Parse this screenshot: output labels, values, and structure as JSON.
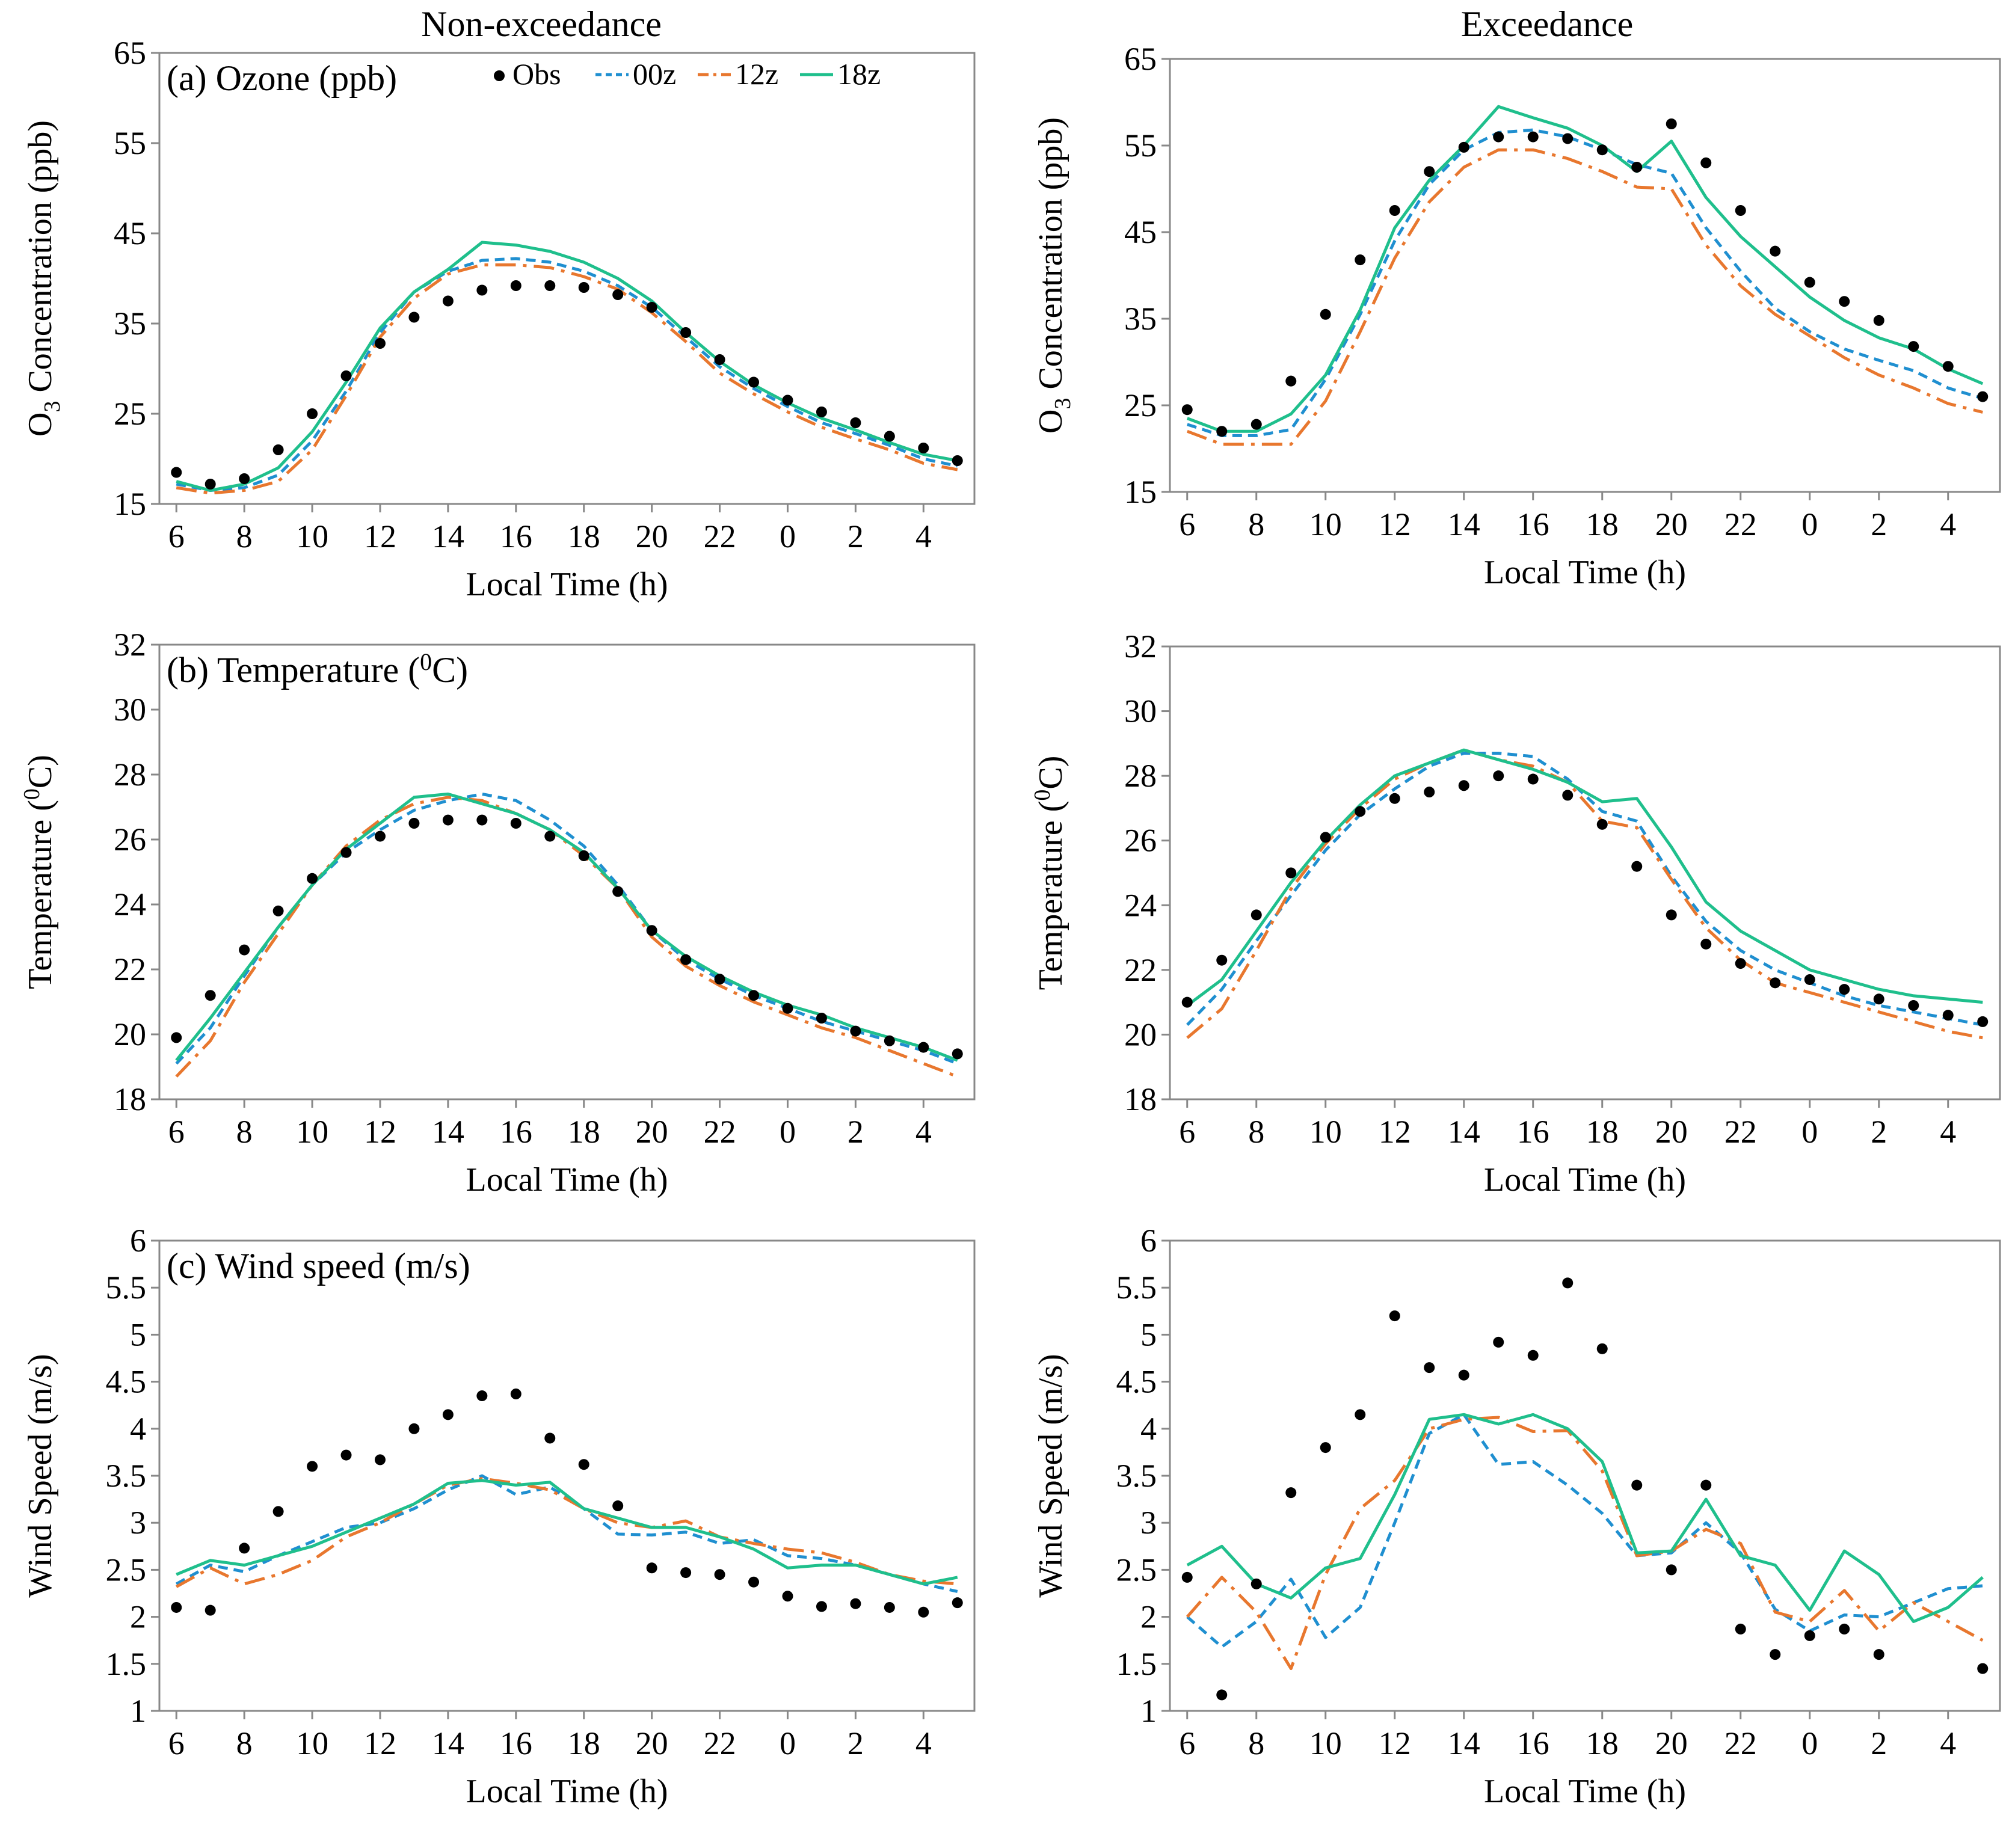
{
  "column_titles": [
    "Non-exceedance",
    "Exceedance"
  ],
  "legend": [
    {
      "key": "obs",
      "label": "Obs"
    },
    {
      "key": "s00z",
      "label": "00z"
    },
    {
      "key": "s12z",
      "label": "12z"
    },
    {
      "key": "s18z",
      "label": "18z"
    }
  ],
  "colors": {
    "obs": "#000000",
    "s00z": "#1f8fd0",
    "s12z": "#e8772e",
    "s18z": "#1fbf8c"
  },
  "chart_data": [
    {
      "id": "ozone-nonexceedance",
      "type": "line",
      "column_title": "Non-exceedance",
      "panel_label_main": "(a) Ozone (ppb)",
      "title": "(a) Ozone (ppb)",
      "xlabel": "Local Time (h)",
      "ylabel": "O3 Concentration (ppb)",
      "ylabel_main": "O",
      "ylabel_sub": "3",
      "ylabel_rest": " Concentration (ppb)",
      "ylim": [
        15,
        65
      ],
      "yticks": [
        "15",
        "25",
        "35",
        "45",
        "55",
        "65"
      ],
      "x_tick_labels": [
        "6",
        "8",
        "10",
        "12",
        "14",
        "16",
        "18",
        "20",
        "22",
        "0",
        "2",
        "4"
      ],
      "x": [
        6,
        7,
        8,
        9,
        10,
        11,
        12,
        13,
        14,
        15,
        16,
        17,
        18,
        19,
        20,
        21,
        22,
        23,
        0,
        1,
        2,
        3,
        4,
        5
      ],
      "series": [
        {
          "key": "obs",
          "name": "Obs",
          "values": [
            18.5,
            17.2,
            17.8,
            21,
            25,
            29.2,
            32.8,
            35.7,
            37.5,
            38.7,
            39.2,
            39.2,
            39,
            38.2,
            36.8,
            34,
            31,
            28.5,
            26.5,
            25.2,
            24,
            22.5,
            21.2,
            19.8
          ]
        },
        {
          "key": "s00z",
          "name": "00z",
          "values": [
            17.2,
            16.5,
            16.8,
            18.2,
            22,
            27.5,
            34,
            38.5,
            40.8,
            42,
            42.2,
            41.8,
            40.8,
            39.2,
            36.8,
            33.5,
            30.2,
            27.8,
            25.8,
            24,
            22.8,
            21.5,
            20,
            19.2
          ]
        },
        {
          "key": "s12z",
          "name": "12z",
          "values": [
            16.8,
            16.2,
            16.5,
            17.5,
            21,
            27,
            33.5,
            37.8,
            40.5,
            41.5,
            41.5,
            41.2,
            40.2,
            38.8,
            36.2,
            33,
            29.5,
            27.2,
            25.2,
            23.5,
            22.2,
            21,
            19.5,
            18.8
          ]
        },
        {
          "key": "s18z",
          "name": "18z",
          "values": [
            17.5,
            16.5,
            17.2,
            19,
            23,
            28.5,
            34.5,
            38.5,
            41,
            44,
            43.7,
            43,
            41.8,
            40,
            37.5,
            34,
            30.8,
            28.2,
            26.2,
            24.5,
            23.2,
            21.8,
            20.5,
            19.8
          ]
        }
      ]
    },
    {
      "id": "ozone-exceedance",
      "type": "line",
      "column_title": "Exceedance",
      "panel_label_main": "",
      "title": "",
      "xlabel": "Local Time (h)",
      "ylabel": "O3 Concentration (ppb)",
      "ylabel_main": "O",
      "ylabel_sub": "3",
      "ylabel_rest": " Concentration (ppb)",
      "ylim": [
        15,
        65
      ],
      "yticks": [
        "15",
        "25",
        "35",
        "45",
        "55",
        "65"
      ],
      "x_tick_labels": [
        "6",
        "8",
        "10",
        "12",
        "14",
        "16",
        "18",
        "20",
        "22",
        "0",
        "2",
        "4"
      ],
      "x": [
        6,
        7,
        8,
        9,
        10,
        11,
        12,
        13,
        14,
        15,
        16,
        17,
        18,
        19,
        20,
        21,
        22,
        23,
        0,
        1,
        2,
        3,
        4,
        5
      ],
      "series": [
        {
          "key": "obs",
          "name": "Obs",
          "values": [
            24.5,
            22,
            22.8,
            27.8,
            35.5,
            41.8,
            47.5,
            52,
            54.8,
            56,
            56,
            55.8,
            54.5,
            52.5,
            57.5,
            53,
            47.5,
            42.8,
            39.2,
            37,
            34.8,
            31.8,
            29.5,
            26
          ]
        },
        {
          "key": "s00z",
          "name": "00z",
          "values": [
            22.8,
            21.5,
            21.5,
            22.2,
            28,
            35.5,
            44,
            50.5,
            54.5,
            56.5,
            56.8,
            56,
            54.5,
            52.8,
            51.8,
            45.5,
            40.5,
            36.2,
            33.5,
            31.5,
            30.2,
            29,
            27,
            25.8
          ]
        },
        {
          "key": "s12z",
          "name": "12z",
          "values": [
            22,
            20.5,
            20.5,
            20.5,
            25.5,
            33.5,
            42,
            48.5,
            52.5,
            54.5,
            54.5,
            53.5,
            52,
            50.2,
            50,
            43.5,
            38.8,
            35.5,
            33,
            30.5,
            28.5,
            27,
            25.2,
            24.2
          ]
        },
        {
          "key": "s18z",
          "name": "18z",
          "values": [
            23.5,
            22,
            22,
            24,
            28.5,
            36,
            45.5,
            51,
            55,
            59.5,
            58.2,
            57,
            55,
            52,
            55.5,
            49,
            44.5,
            41,
            37.5,
            34.8,
            32.8,
            31.5,
            29.2,
            27.5
          ]
        }
      ]
    },
    {
      "id": "temperature-nonexceedance",
      "type": "line",
      "column_title": "Non-exceedance",
      "panel_label_main": "(b) Temperature (",
      "panel_label_sup": "0",
      "panel_label_end": "C)",
      "title": "(b) Temperature (0C)",
      "xlabel": "Local Time (h)",
      "ylabel": "Temperature (0C)",
      "ylabel_main": "Temperature (",
      "ylabel_sup": "0",
      "ylabel_rest": "C)",
      "ylim": [
        18,
        32
      ],
      "yticks": [
        "18",
        "20",
        "22",
        "24",
        "26",
        "28",
        "30",
        "32"
      ],
      "x_tick_labels": [
        "6",
        "8",
        "10",
        "12",
        "14",
        "16",
        "18",
        "20",
        "22",
        "0",
        "2",
        "4"
      ],
      "x": [
        6,
        7,
        8,
        9,
        10,
        11,
        12,
        13,
        14,
        15,
        16,
        17,
        18,
        19,
        20,
        21,
        22,
        23,
        0,
        1,
        2,
        3,
        4,
        5
      ],
      "series": [
        {
          "key": "obs",
          "name": "Obs",
          "values": [
            19.9,
            21.2,
            22.6,
            23.8,
            24.8,
            25.6,
            26.1,
            26.5,
            26.6,
            26.6,
            26.5,
            26.1,
            25.5,
            24.4,
            23.2,
            22.3,
            21.7,
            21.2,
            20.8,
            20.5,
            20.1,
            19.8,
            19.6,
            19.4
          ]
        },
        {
          "key": "s00z",
          "name": "00z",
          "values": [
            19.1,
            20.2,
            21.8,
            23.3,
            24.6,
            25.6,
            26.3,
            26.9,
            27.2,
            27.4,
            27.2,
            26.6,
            25.8,
            24.6,
            23.2,
            22.3,
            21.7,
            21.2,
            20.8,
            20.4,
            20.1,
            19.8,
            19.5,
            19.1
          ]
        },
        {
          "key": "s12z",
          "name": "12z",
          "values": [
            18.7,
            19.8,
            21.6,
            23.1,
            24.6,
            25.8,
            26.6,
            27.1,
            27.3,
            27.2,
            26.8,
            26.3,
            25.5,
            24.5,
            23.0,
            22.1,
            21.5,
            21.0,
            20.6,
            20.2,
            19.9,
            19.5,
            19.1,
            18.7
          ]
        },
        {
          "key": "s18z",
          "name": "18z",
          "values": [
            19.2,
            20.5,
            21.9,
            23.3,
            24.6,
            25.7,
            26.5,
            27.3,
            27.4,
            27.1,
            26.8,
            26.3,
            25.6,
            24.5,
            23.2,
            22.4,
            21.8,
            21.3,
            20.9,
            20.6,
            20.2,
            19.9,
            19.6,
            19.2
          ]
        }
      ]
    },
    {
      "id": "temperature-exceedance",
      "type": "line",
      "column_title": "Exceedance",
      "panel_label_main": "",
      "title": "",
      "xlabel": "Local Time (h)",
      "ylabel": "Temperature (0C)",
      "ylabel_main": "Temperature (",
      "ylabel_sup": "0",
      "ylabel_rest": "C)",
      "ylim": [
        18,
        32
      ],
      "yticks": [
        "18",
        "20",
        "22",
        "24",
        "26",
        "28",
        "30",
        "32"
      ],
      "x_tick_labels": [
        "6",
        "8",
        "10",
        "12",
        "14",
        "16",
        "18",
        "20",
        "22",
        "0",
        "2",
        "4"
      ],
      "x": [
        6,
        7,
        8,
        9,
        10,
        11,
        12,
        13,
        14,
        15,
        16,
        17,
        18,
        19,
        20,
        21,
        22,
        23,
        0,
        1,
        2,
        3,
        4,
        5
      ],
      "series": [
        {
          "key": "obs",
          "name": "Obs",
          "values": [
            21.0,
            22.3,
            23.7,
            25.0,
            26.1,
            26.9,
            27.3,
            27.5,
            27.7,
            28.0,
            27.9,
            27.4,
            26.5,
            25.2,
            23.7,
            22.8,
            22.2,
            21.6,
            21.7,
            21.4,
            21.1,
            20.9,
            20.6,
            20.4
          ]
        },
        {
          "key": "s00z",
          "name": "00z",
          "values": [
            20.3,
            21.4,
            22.9,
            24.3,
            25.7,
            26.8,
            27.6,
            28.3,
            28.7,
            28.7,
            28.6,
            27.9,
            26.9,
            26.6,
            24.9,
            23.5,
            22.6,
            22.0,
            21.6,
            21.2,
            20.9,
            20.7,
            20.5,
            20.3
          ]
        },
        {
          "key": "s12z",
          "name": "12z",
          "values": [
            19.9,
            20.8,
            22.6,
            24.5,
            25.9,
            27.0,
            27.9,
            28.4,
            28.8,
            28.5,
            28.3,
            27.8,
            26.6,
            26.4,
            24.8,
            23.3,
            22.3,
            21.6,
            21.3,
            21.0,
            20.7,
            20.4,
            20.1,
            19.9
          ]
        },
        {
          "key": "s18z",
          "name": "18z",
          "values": [
            20.9,
            21.7,
            23.2,
            24.7,
            26.0,
            27.1,
            28.0,
            28.4,
            28.8,
            28.5,
            28.2,
            27.8,
            27.2,
            27.3,
            25.8,
            24.1,
            23.2,
            22.6,
            22.0,
            21.7,
            21.4,
            21.2,
            21.1,
            21.0
          ]
        }
      ]
    },
    {
      "id": "windspeed-nonexceedance",
      "type": "line",
      "column_title": "Non-exceedance",
      "panel_label_main": "(c) Wind speed (m/s)",
      "title": "(c) Wind speed (m/s)",
      "xlabel": "Local Time (h)",
      "ylabel": "Wind Speed (m/s)",
      "ylabel_main": "Wind Speed (m/s)",
      "ylim": [
        1,
        6
      ],
      "yticks": [
        "1",
        "1.5",
        "2",
        "2.5",
        "3",
        "3.5",
        "4",
        "4.5",
        "5",
        "5.5",
        "6"
      ],
      "x_tick_labels": [
        "6",
        "8",
        "10",
        "12",
        "14",
        "16",
        "18",
        "20",
        "22",
        "0",
        "2",
        "4"
      ],
      "x": [
        6,
        7,
        8,
        9,
        10,
        11,
        12,
        13,
        14,
        15,
        16,
        17,
        18,
        19,
        20,
        21,
        22,
        23,
        0,
        1,
        2,
        3,
        4,
        5
      ],
      "series": [
        {
          "key": "obs",
          "name": "Obs",
          "values": [
            2.1,
            2.07,
            2.73,
            3.12,
            3.6,
            3.72,
            3.67,
            4.0,
            4.15,
            4.35,
            4.37,
            3.9,
            3.62,
            3.18,
            2.52,
            2.47,
            2.45,
            2.37,
            2.22,
            2.11,
            2.14,
            2.1,
            2.05,
            2.15
          ]
        },
        {
          "key": "s00z",
          "name": "00z",
          "values": [
            2.35,
            2.55,
            2.48,
            2.65,
            2.8,
            2.95,
            3.0,
            3.15,
            3.35,
            3.5,
            3.3,
            3.38,
            3.15,
            2.88,
            2.87,
            2.9,
            2.78,
            2.82,
            2.65,
            2.62,
            2.55,
            2.45,
            2.35,
            2.27
          ]
        },
        {
          "key": "s12z",
          "name": "12z",
          "values": [
            2.32,
            2.52,
            2.35,
            2.45,
            2.6,
            2.85,
            3.0,
            3.2,
            3.4,
            3.47,
            3.42,
            3.35,
            3.15,
            3.0,
            2.95,
            3.02,
            2.85,
            2.78,
            2.72,
            2.68,
            2.58,
            2.45,
            2.38,
            2.35
          ]
        },
        {
          "key": "s18z",
          "name": "18z",
          "values": [
            2.45,
            2.6,
            2.55,
            2.65,
            2.75,
            2.9,
            3.05,
            3.2,
            3.42,
            3.45,
            3.4,
            3.43,
            3.15,
            3.05,
            2.95,
            2.95,
            2.85,
            2.72,
            2.52,
            2.55,
            2.55,
            2.45,
            2.35,
            2.42
          ]
        }
      ]
    },
    {
      "id": "windspeed-exceedance",
      "type": "line",
      "column_title": "Exceedance",
      "panel_label_main": "",
      "title": "",
      "xlabel": "Local Time (h)",
      "ylabel": "Wind Speed (m/s)",
      "ylabel_main": "Wind Speed (m/s)",
      "ylim": [
        1,
        6
      ],
      "yticks": [
        "1",
        "1.5",
        "2",
        "2.5",
        "3",
        "3.5",
        "4",
        "4.5",
        "5",
        "5.5",
        "6"
      ],
      "x_tick_labels": [
        "6",
        "8",
        "10",
        "12",
        "14",
        "16",
        "18",
        "20",
        "22",
        "0",
        "2",
        "4"
      ],
      "x": [
        6,
        7,
        8,
        9,
        10,
        11,
        12,
        13,
        14,
        15,
        16,
        17,
        18,
        19,
        20,
        21,
        22,
        23,
        0,
        1,
        2,
        3,
        4,
        5
      ],
      "series": [
        {
          "key": "obs",
          "name": "Obs",
          "values": [
            2.42,
            1.17,
            2.35,
            3.32,
            3.8,
            4.15,
            5.2,
            4.65,
            4.57,
            4.92,
            4.78,
            5.55,
            4.85,
            3.4,
            2.5,
            3.4,
            1.87,
            1.6,
            1.8,
            1.87,
            1.6,
            null,
            null,
            1.45
          ]
        },
        {
          "key": "s00z",
          "name": "00z",
          "values": [
            2.0,
            1.68,
            1.95,
            2.4,
            1.78,
            2.1,
            3.0,
            3.95,
            4.15,
            3.62,
            3.65,
            3.4,
            3.1,
            2.65,
            2.68,
            3.0,
            2.68,
            2.08,
            1.85,
            2.02,
            2.0,
            2.15,
            2.3,
            2.33
          ]
        },
        {
          "key": "s12z",
          "name": "12z",
          "values": [
            2.0,
            2.42,
            2.05,
            1.45,
            2.45,
            3.15,
            3.45,
            4.0,
            4.1,
            4.12,
            3.97,
            3.98,
            3.55,
            2.65,
            2.7,
            2.93,
            2.78,
            2.05,
            1.95,
            2.28,
            1.85,
            2.15,
            1.95,
            1.75
          ]
        },
        {
          "key": "s18z",
          "name": "18z",
          "values": [
            2.55,
            2.75,
            2.35,
            2.2,
            2.52,
            2.62,
            3.3,
            4.1,
            4.15,
            4.05,
            4.15,
            4.0,
            3.65,
            2.68,
            2.7,
            3.25,
            2.65,
            2.55,
            2.07,
            2.7,
            2.45,
            1.95,
            2.1,
            2.42
          ]
        }
      ]
    }
  ]
}
